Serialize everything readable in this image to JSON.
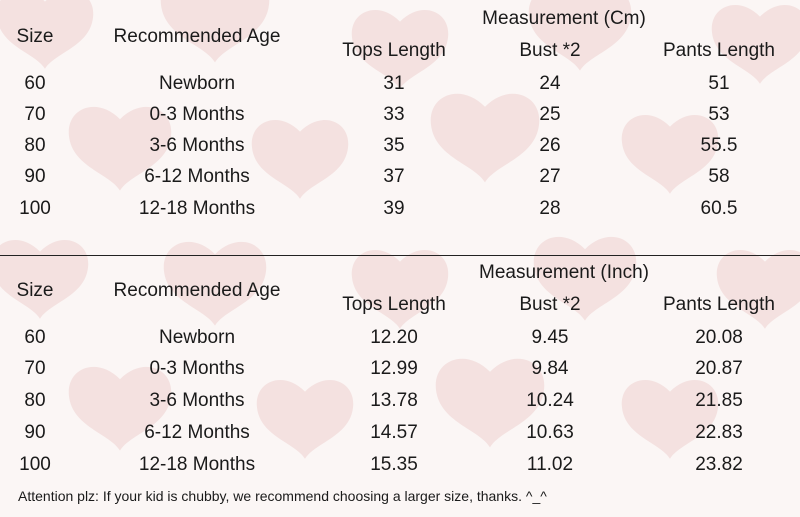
{
  "tables": [
    {
      "group_header": "Measurement (Cm)",
      "columns": [
        "Size",
        "Recommended Age",
        "Tops Length",
        "Bust *2",
        "Pants Length"
      ],
      "rows": [
        [
          "60",
          "Newborn",
          "31",
          "24",
          "51"
        ],
        [
          "70",
          "0-3 Months",
          "33",
          "25",
          "53"
        ],
        [
          "80",
          "3-6 Months",
          "35",
          "26",
          "55.5"
        ],
        [
          "90",
          "6-12 Months",
          "37",
          "27",
          "58"
        ],
        [
          "100",
          "12-18 Months",
          "39",
          "28",
          "60.5"
        ]
      ]
    },
    {
      "group_header": "Measurement (Inch)",
      "columns": [
        "Size",
        "Recommended Age",
        "Tops Length",
        "Bust *2",
        "Pants Length"
      ],
      "rows": [
        [
          "60",
          "Newborn",
          "12.20",
          "9.45",
          "20.08"
        ],
        [
          "70",
          "0-3 Months",
          "12.99",
          "9.84",
          "20.87"
        ],
        [
          "80",
          "3-6 Months",
          "13.78",
          "10.24",
          "21.85"
        ],
        [
          "90",
          "6-12 Months",
          "14.57",
          "10.63",
          "22.83"
        ],
        [
          "100",
          "12-18 Months",
          "15.35",
          "11.02",
          "23.82"
        ]
      ]
    }
  ],
  "footer_note": "Attention plz: If your kid is chubby, we recommend choosing a larger size, thanks. ^_^",
  "colors": {
    "background": "#fbf6f5",
    "heart": "#f3dedd",
    "text": "#1a1a1a"
  },
  "decoration": "heart-pattern"
}
